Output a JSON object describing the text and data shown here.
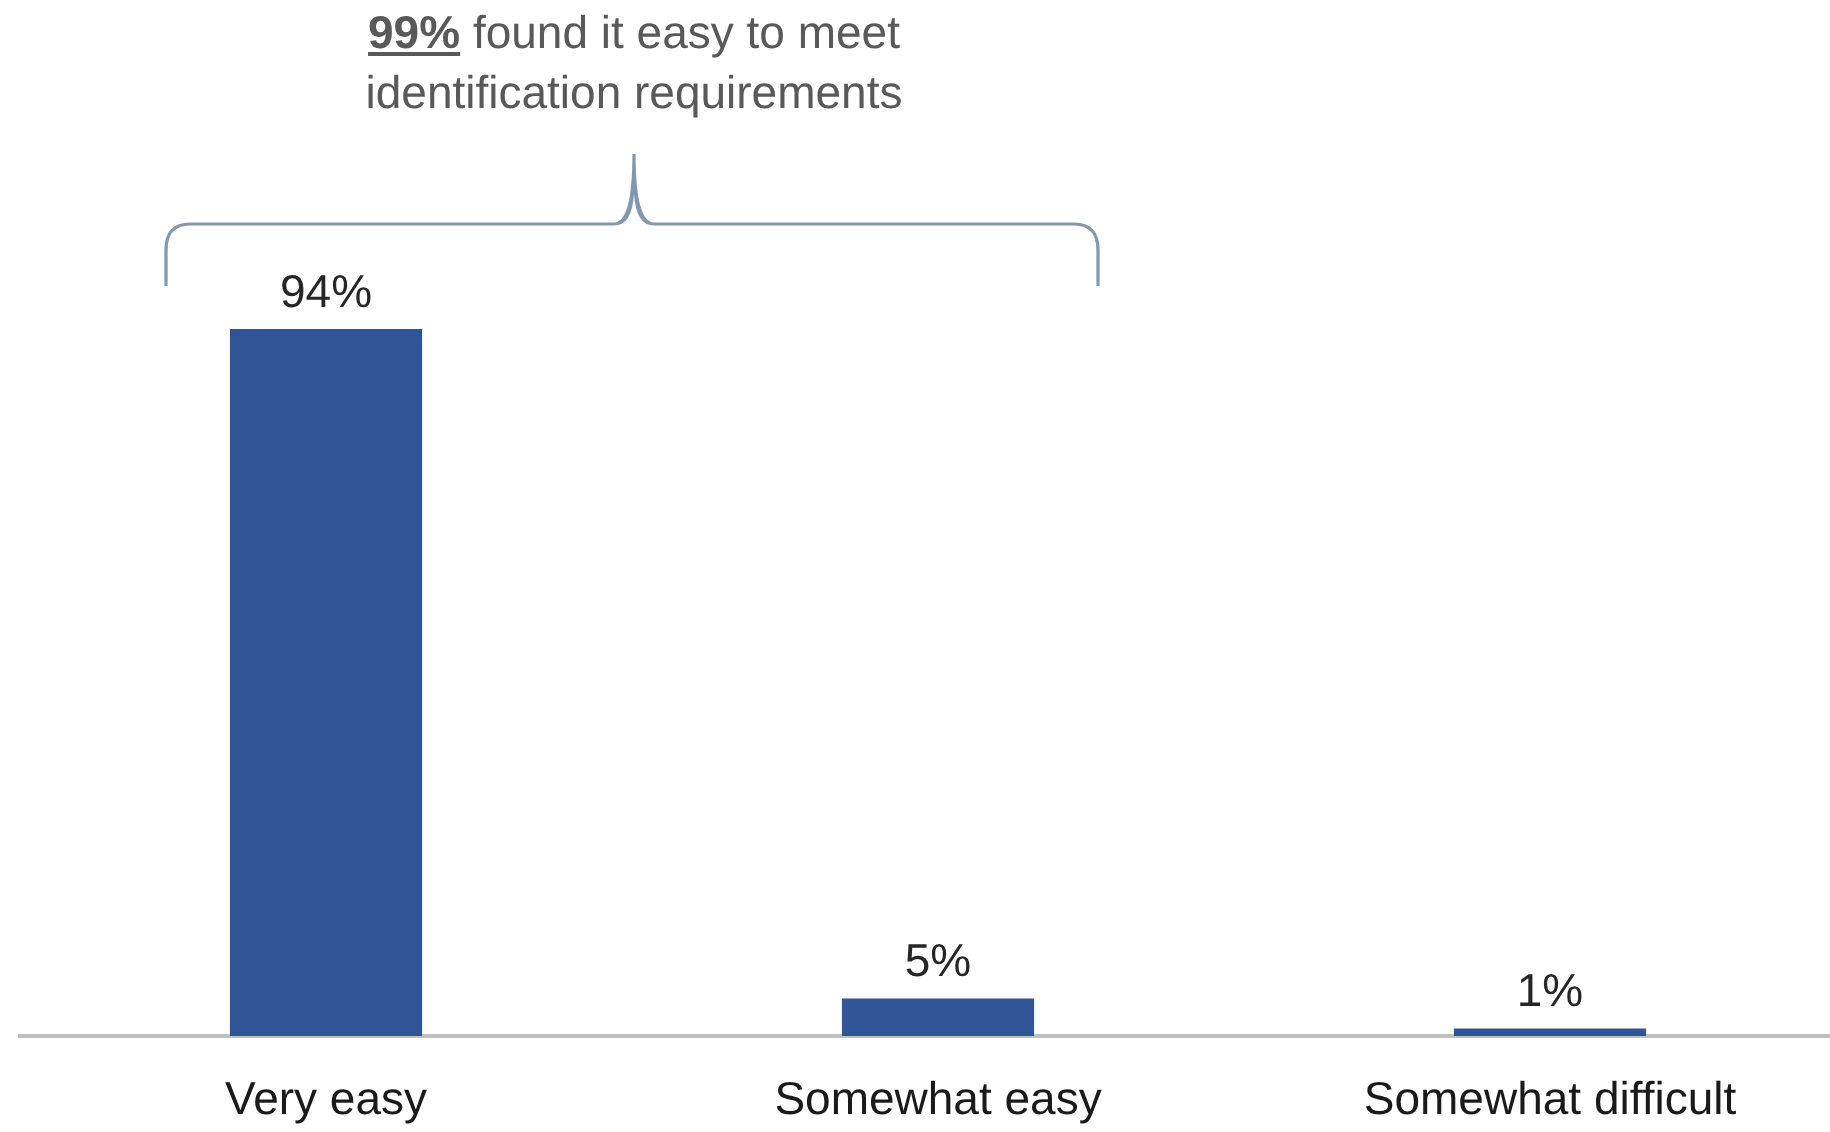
{
  "chart_data": {
    "type": "bar",
    "categories": [
      "Very easy",
      "Somewhat easy",
      "Somewhat difficult"
    ],
    "values": [
      94,
      5,
      1
    ],
    "color": "#2f5597",
    "value_labels": [
      "94%",
      "5%",
      "1%"
    ],
    "tick_labels": "x",
    "annotations": [
      "99% found it easy to meet identification requirements"
    ]
  }
}
